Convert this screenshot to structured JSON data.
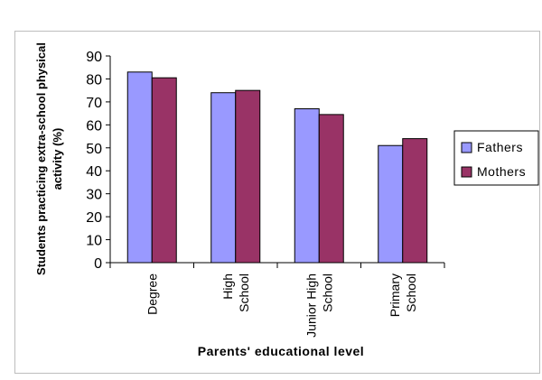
{
  "chart_data": {
    "type": "bar",
    "categories": [
      [
        "Degree"
      ],
      [
        "High",
        "School"
      ],
      [
        "Junior High",
        "School"
      ],
      [
        "Primary",
        "School"
      ]
    ],
    "series": [
      {
        "name": "Fathers",
        "color": "#9999ff",
        "values": [
          83,
          74,
          67,
          51
        ]
      },
      {
        "name": "Mothers",
        "color": "#993366",
        "values": [
          80.5,
          75,
          64.5,
          54
        ]
      }
    ],
    "xlabel": "Parents' educational level",
    "ylabel": [
      "Students practicing extra-school physical",
      "activity (%)"
    ],
    "ylim": [
      0,
      90
    ],
    "yticks": [
      0,
      10,
      20,
      30,
      40,
      50,
      60,
      70,
      80,
      90
    ],
    "grid": false,
    "legend": "right"
  }
}
